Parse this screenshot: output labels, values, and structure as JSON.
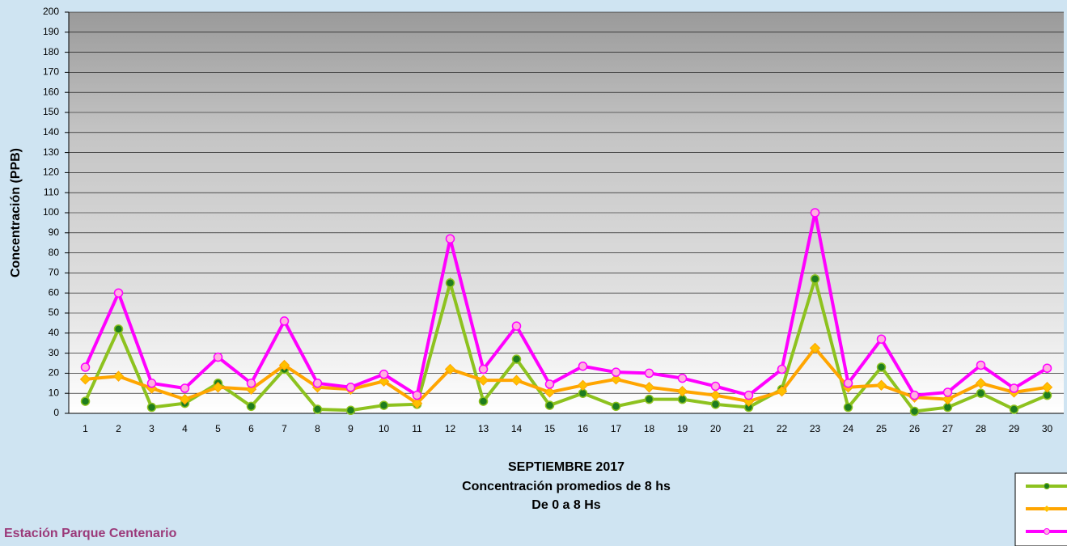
{
  "chart_data": {
    "type": "line",
    "title": "SEPTIEMBRE 2017",
    "subtitle": [
      "Concentración promedios de 8 hs",
      "De 0 a 8 Hs"
    ],
    "annotation": "Estación Parque Centenario",
    "y_label": "Concentración  (PPB)",
    "categories": [
      "1",
      "2",
      "3",
      "4",
      "5",
      "6",
      "7",
      "8",
      "9",
      "10",
      "11",
      "12",
      "13",
      "14",
      "15",
      "16",
      "17",
      "18",
      "19",
      "20",
      "21",
      "22",
      "23",
      "24",
      "25",
      "26",
      "27",
      "28",
      "29",
      "30"
    ],
    "series": [
      {
        "color": "#8dc21f",
        "marker_color": "#1e7d1e",
        "marker": "circle",
        "values": [
          6,
          42,
          3,
          5,
          15,
          3.5,
          22,
          2,
          1.5,
          4,
          4.5,
          65,
          6,
          27,
          4,
          10,
          3.5,
          7,
          7,
          4.5,
          3,
          12,
          67,
          3,
          23,
          1,
          3,
          10,
          2,
          9
        ]
      },
      {
        "color": "#ffa500",
        "marker_color": "#ffc000",
        "marker": "diamond",
        "values": [
          17,
          18.5,
          12.5,
          7,
          13,
          12,
          24,
          13,
          12,
          16,
          5,
          22,
          16.5,
          16.5,
          10.5,
          14,
          17,
          13,
          11,
          9,
          6,
          11,
          32.5,
          13,
          14,
          8,
          7,
          15,
          10.5,
          13
        ]
      },
      {
        "color": "#ff00ff",
        "marker_color": "#ffb0e0",
        "marker": "circle",
        "values": [
          23,
          60,
          15,
          12.5,
          28,
          15,
          46,
          15,
          13,
          19.5,
          9,
          87,
          22,
          43.5,
          14.5,
          23.5,
          20.5,
          20,
          17.5,
          13.5,
          9,
          22,
          100,
          15,
          37,
          9,
          10.5,
          24,
          12.5,
          22.5
        ]
      }
    ],
    "ylim": [
      0,
      200
    ],
    "yticks": [
      0,
      10,
      20,
      30,
      40,
      50,
      60,
      70,
      80,
      90,
      100,
      110,
      120,
      130,
      140,
      150,
      160,
      170,
      180,
      190,
      200
    ],
    "grid": true,
    "legend": "bottom-right"
  }
}
